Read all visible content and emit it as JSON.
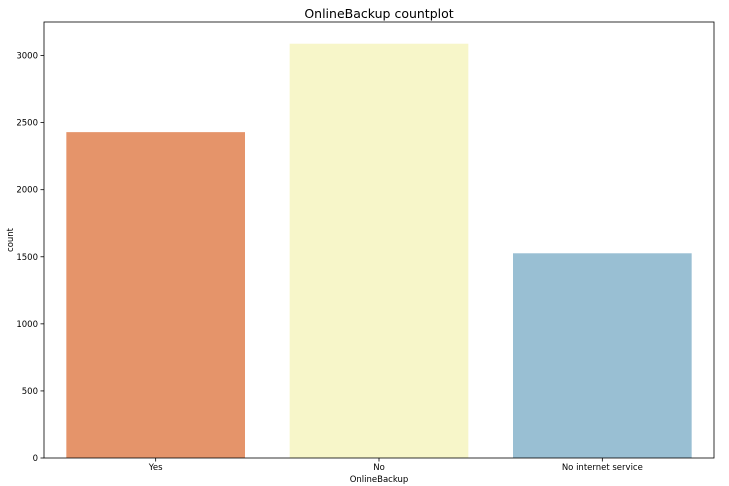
{
  "chart_data": {
    "type": "bar",
    "title": "OnlineBackup countplot",
    "xlabel": "OnlineBackup",
    "ylabel": "count",
    "categories": [
      "Yes",
      "No",
      "No internet service"
    ],
    "values": [
      2429,
      3088,
      1526
    ],
    "colors": [
      "#e5946a",
      "#f7f6c9",
      "#99bfd3"
    ],
    "ylim": [
      0,
      3250
    ],
    "yticks": [
      0,
      500,
      1000,
      1500,
      2000,
      2500,
      3000
    ],
    "grid": false,
    "legend": "none"
  }
}
